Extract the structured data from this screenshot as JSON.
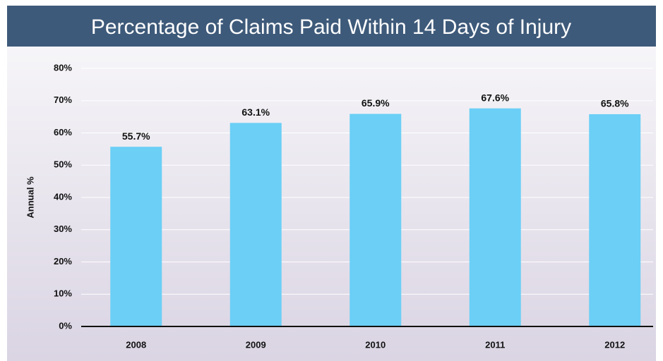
{
  "chart_data": {
    "type": "bar",
    "title": "Percentage of Claims Paid Within 14 Days of Injury",
    "ylabel": "Annual %",
    "categories": [
      "2008",
      "2009",
      "2010",
      "2011",
      "2012"
    ],
    "values": [
      55.7,
      63.1,
      65.9,
      67.6,
      65.8
    ],
    "value_labels": [
      "55.7%",
      "63.1%",
      "65.9%",
      "67.6%",
      "65.8%"
    ],
    "color": "#6bcff6",
    "ylim": [
      0,
      80
    ],
    "yticks": [
      {
        "value": 0,
        "label": "0%"
      },
      {
        "value": 10,
        "label": "10%"
      },
      {
        "value": 20,
        "label": "20%"
      },
      {
        "value": 30,
        "label": "30%"
      },
      {
        "value": 40,
        "label": "40%"
      },
      {
        "value": 50,
        "label": "50%"
      },
      {
        "value": 60,
        "label": "60%"
      },
      {
        "value": 70,
        "label": "70%"
      },
      {
        "value": 80,
        "label": "80%"
      }
    ],
    "grid": true
  }
}
